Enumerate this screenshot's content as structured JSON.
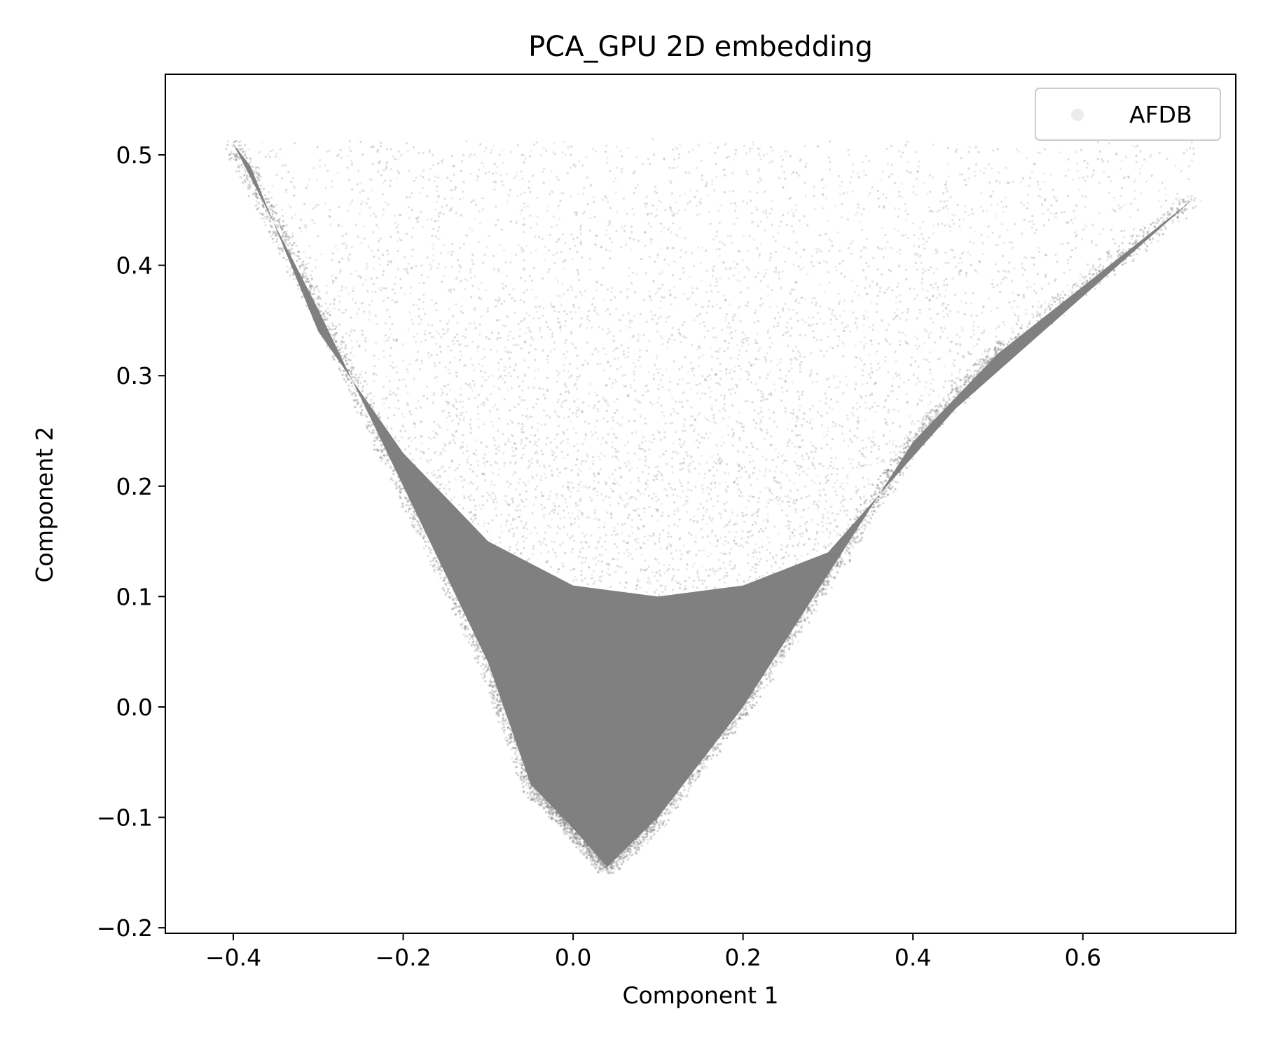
{
  "chart_data": {
    "type": "scatter",
    "title": "PCA_GPU 2D embedding",
    "xlabel": "Component 1",
    "ylabel": "Component 2",
    "xlim": [
      -0.48,
      0.78
    ],
    "ylim": [
      -0.205,
      0.573
    ],
    "xticks": [
      -0.4,
      -0.2,
      0.0,
      0.2,
      0.4,
      0.6
    ],
    "xtick_labels": [
      "−0.4",
      "−0.2",
      "0.0",
      "0.2",
      "0.4",
      "0.6"
    ],
    "yticks": [
      -0.2,
      -0.1,
      0.0,
      0.1,
      0.2,
      0.3,
      0.4,
      0.5
    ],
    "ytick_labels": [
      "−0.2",
      "−0.1",
      "0.0",
      "0.1",
      "0.2",
      "0.3",
      "0.4",
      "0.5"
    ],
    "grid": false,
    "legend_position": "top-right",
    "point_color": "#808080",
    "series": [
      {
        "name": "AFDB",
        "region_boundary": {
          "left_edge": [
            [
              -0.4,
              0.51
            ],
            [
              -0.3,
              0.36
            ],
            [
              -0.2,
              0.2
            ],
            [
              -0.1,
              0.04
            ],
            [
              -0.05,
              -0.07
            ],
            [
              0.0,
              -0.11
            ],
            [
              0.04,
              -0.145
            ]
          ],
          "right_edge": [
            [
              0.04,
              -0.145
            ],
            [
              0.1,
              -0.1
            ],
            [
              0.2,
              0.0
            ],
            [
              0.3,
              0.12
            ],
            [
              0.4,
              0.24
            ],
            [
              0.5,
              0.32
            ],
            [
              0.73,
              0.46
            ]
          ],
          "dense_core_top": [
            [
              -0.38,
              0.49
            ],
            [
              -0.3,
              0.34
            ],
            [
              -0.2,
              0.23
            ],
            [
              -0.1,
              0.15
            ],
            [
              0.0,
              0.11
            ],
            [
              0.1,
              0.1
            ],
            [
              0.2,
              0.11
            ],
            [
              0.3,
              0.14
            ],
            [
              0.45,
              0.27
            ],
            [
              0.73,
              0.46
            ]
          ]
        }
      }
    ]
  }
}
